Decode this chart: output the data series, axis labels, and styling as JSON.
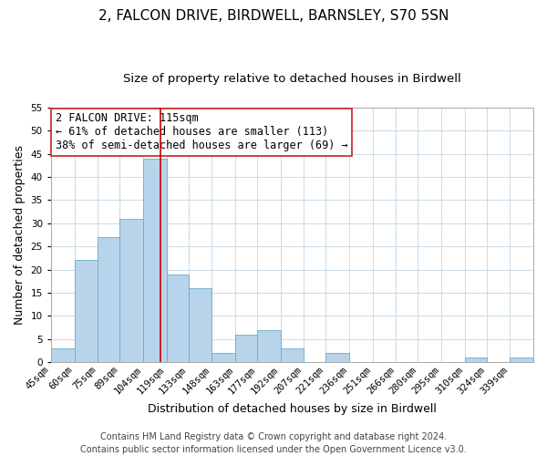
{
  "title": "2, FALCON DRIVE, BIRDWELL, BARNSLEY, S70 5SN",
  "subtitle": "Size of property relative to detached houses in Birdwell",
  "xlabel": "Distribution of detached houses by size in Birdwell",
  "ylabel": "Number of detached properties",
  "bin_labels": [
    "45sqm",
    "60sqm",
    "75sqm",
    "89sqm",
    "104sqm",
    "119sqm",
    "133sqm",
    "148sqm",
    "163sqm",
    "177sqm",
    "192sqm",
    "207sqm",
    "221sqm",
    "236sqm",
    "251sqm",
    "266sqm",
    "280sqm",
    "295sqm",
    "310sqm",
    "324sqm",
    "339sqm"
  ],
  "bin_edges": [
    45,
    60,
    75,
    89,
    104,
    119,
    133,
    148,
    163,
    177,
    192,
    207,
    221,
    236,
    251,
    266,
    280,
    295,
    310,
    324,
    339,
    354
  ],
  "bar_heights": [
    3,
    22,
    27,
    31,
    44,
    19,
    16,
    2,
    6,
    7,
    3,
    0,
    2,
    0,
    0,
    0,
    0,
    0,
    1,
    0,
    1
  ],
  "bar_color": "#b8d4ea",
  "bar_edge_color": "#6aabcc",
  "marker_value": 115,
  "marker_color": "#cc0000",
  "ylim": [
    0,
    55
  ],
  "yticks": [
    0,
    5,
    10,
    15,
    20,
    25,
    30,
    35,
    40,
    45,
    50,
    55
  ],
  "annotation_title": "2 FALCON DRIVE: 115sqm",
  "annotation_line1": "← 61% of detached houses are smaller (113)",
  "annotation_line2": "38% of semi-detached houses are larger (69) →",
  "footer1": "Contains HM Land Registry data © Crown copyright and database right 2024.",
  "footer2": "Contains public sector information licensed under the Open Government Licence v3.0.",
  "title_fontsize": 11,
  "subtitle_fontsize": 9.5,
  "axis_label_fontsize": 9,
  "tick_fontsize": 7.5,
  "annotation_fontsize": 8.5,
  "footer_fontsize": 7,
  "background_color": "#ffffff",
  "grid_color": "#ccdde8"
}
